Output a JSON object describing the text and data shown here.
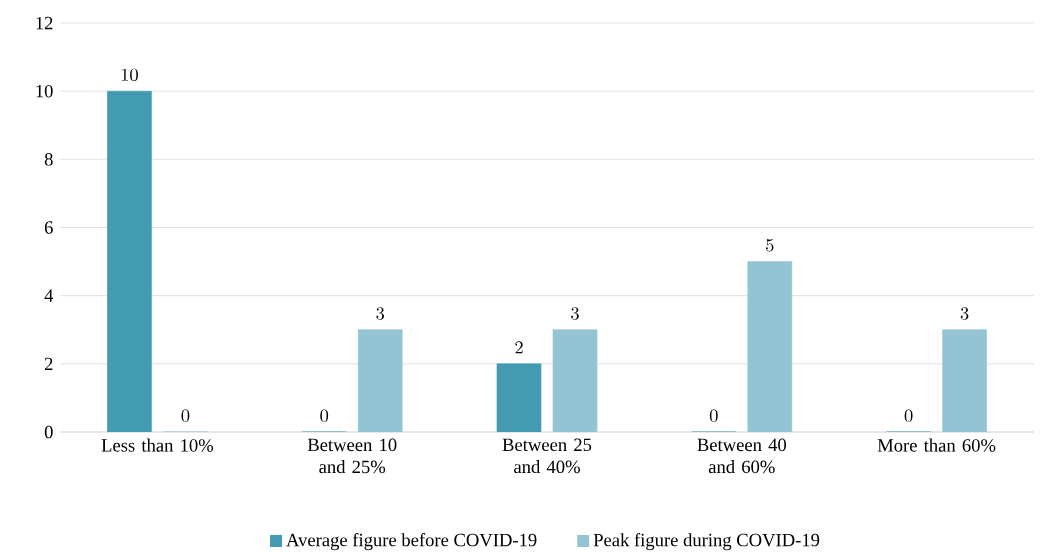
{
  "chart_data": {
    "type": "bar",
    "categories": [
      "Less than 10%",
      "Between 10 and 25%",
      "Between 25 and 40%",
      "Between 40 and 60%",
      "More than 60%"
    ],
    "series": [
      {
        "name": "Average figure before COVID-19",
        "color": "#429bb0",
        "values": [
          10,
          0,
          2,
          0,
          0
        ]
      },
      {
        "name": "Peak figure during COVID-19",
        "color": "#93c4d4",
        "values": [
          0,
          3,
          3,
          5,
          3
        ]
      }
    ],
    "ylim": [
      0,
      12
    ],
    "yticks": [
      0,
      2,
      4,
      6,
      8,
      10,
      12
    ],
    "grid": "y",
    "legend": "bottom",
    "data_labels": true
  }
}
